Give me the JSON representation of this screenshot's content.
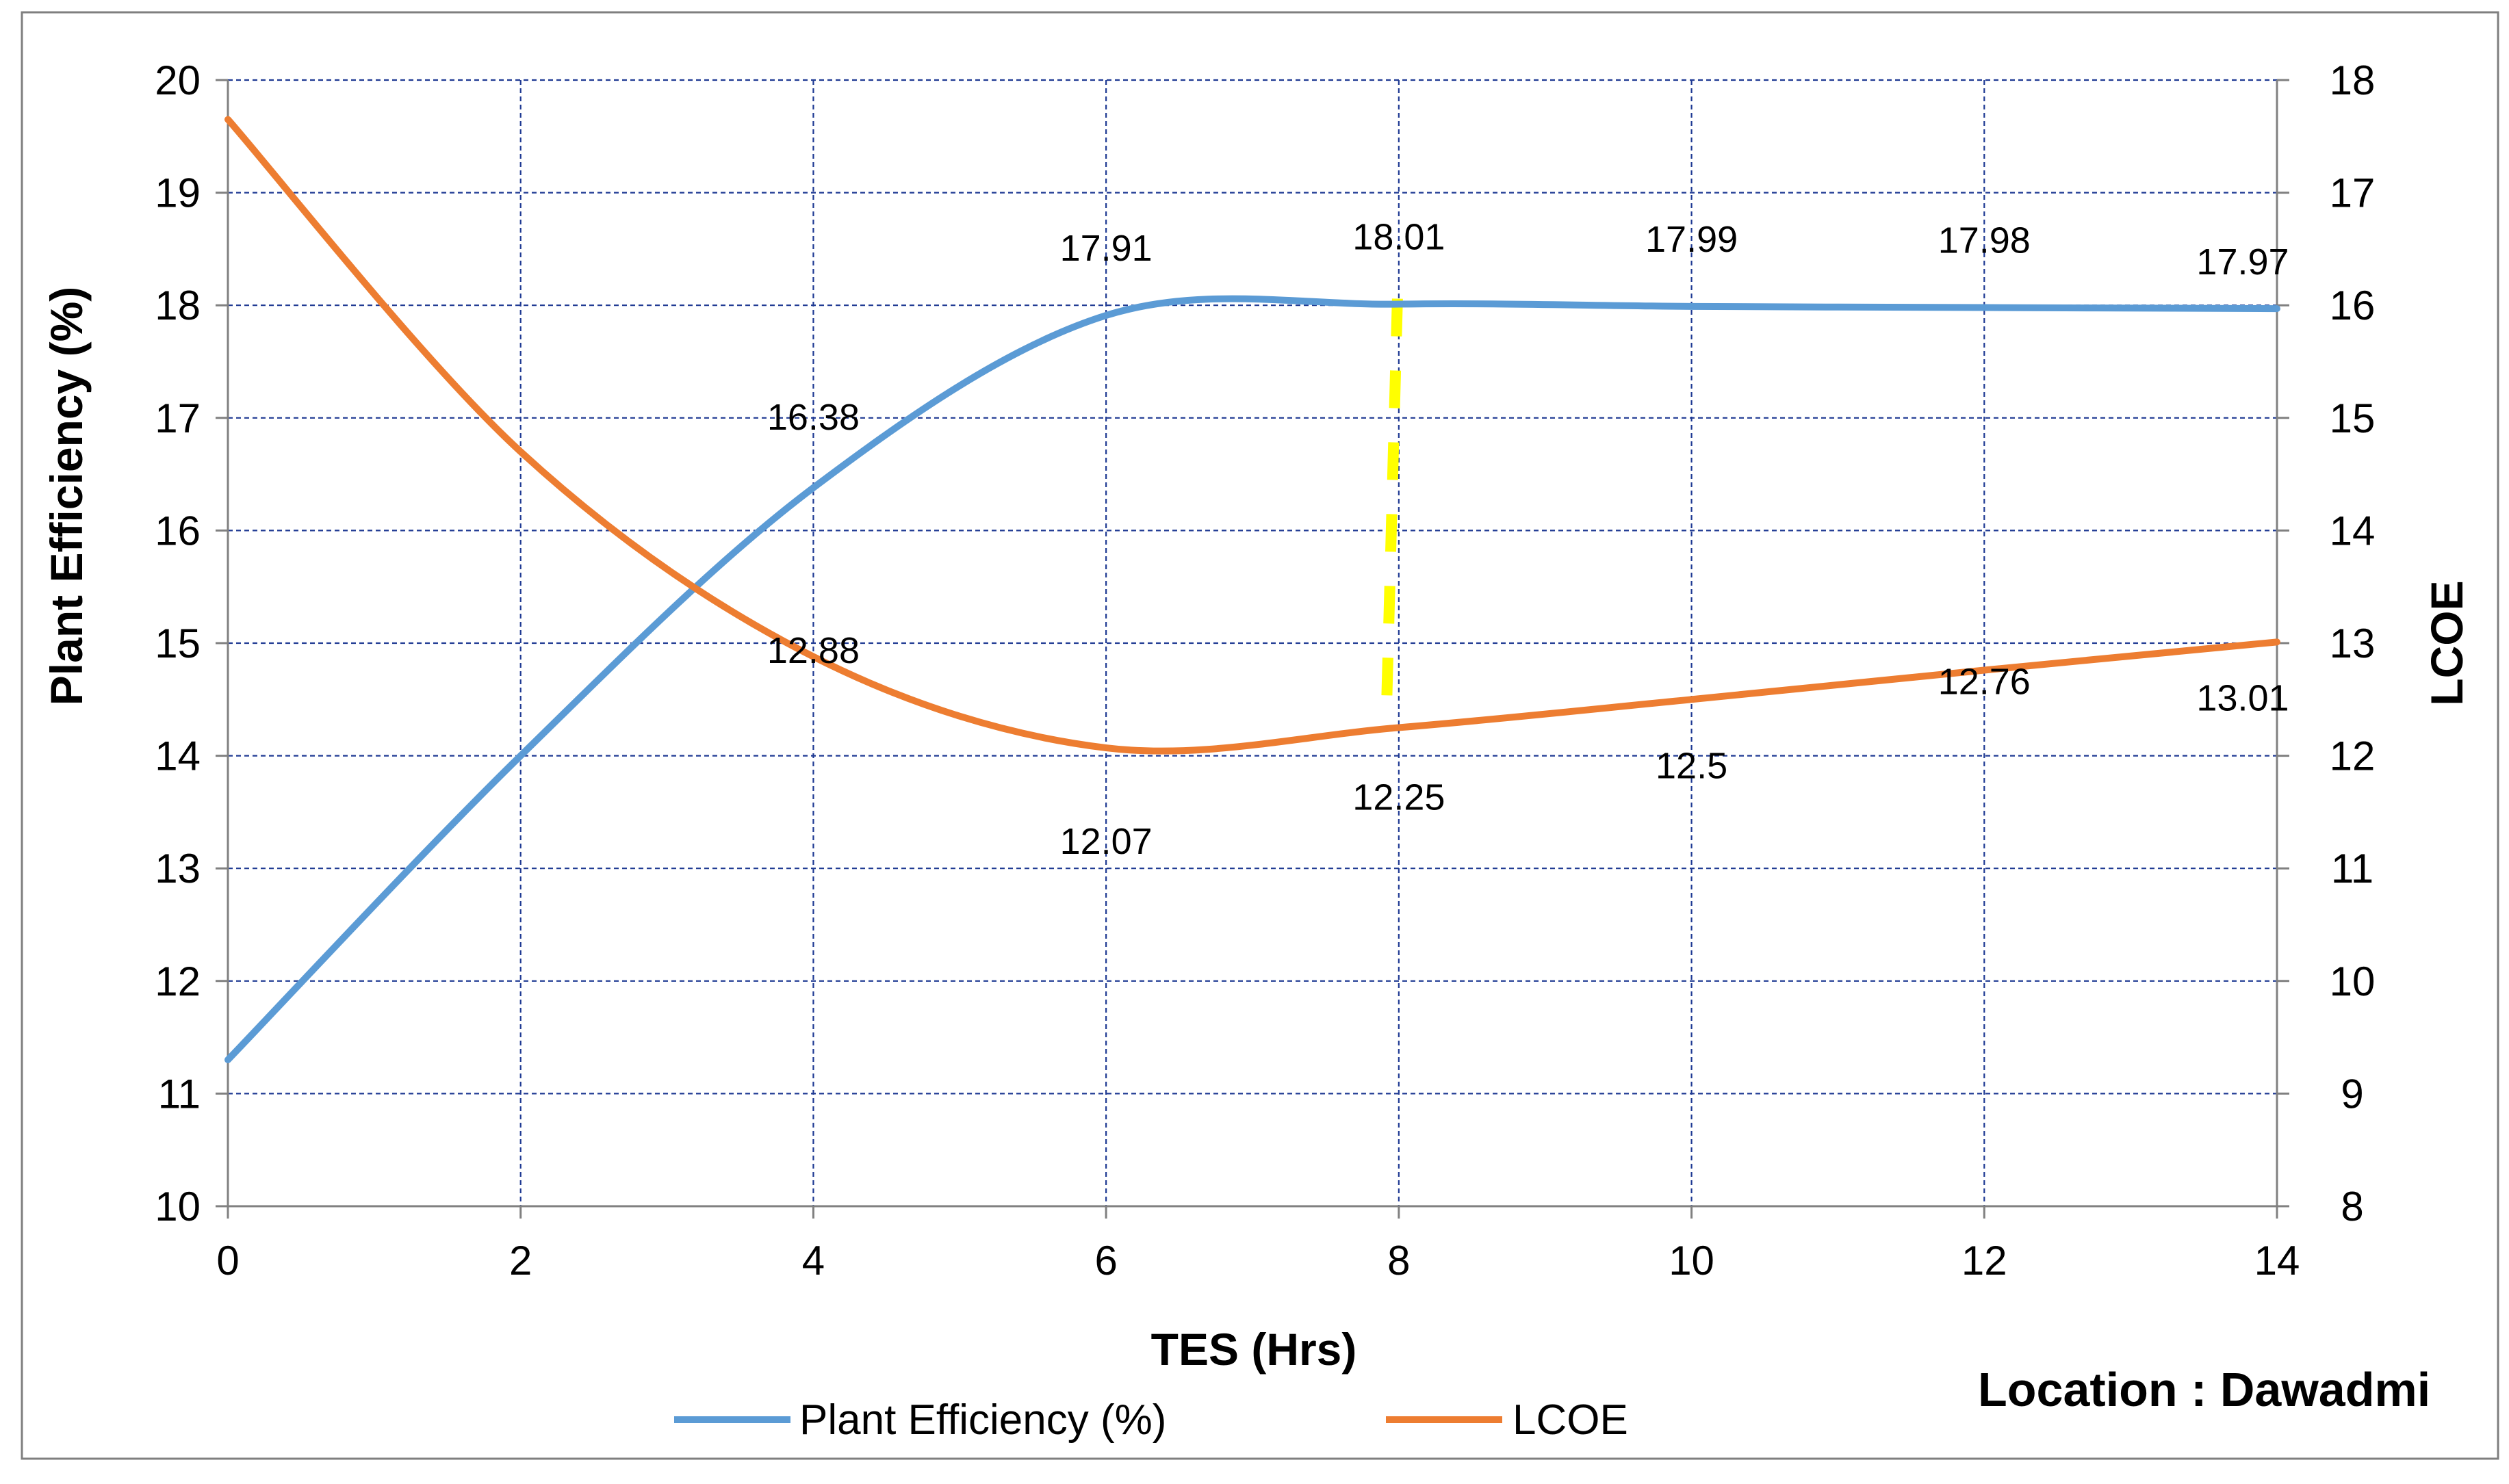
{
  "chart_data": {
    "type": "line",
    "title": "",
    "xlabel": "TES (Hrs)",
    "ylabel": "Plant Efficiency (%)",
    "y2label": "LCOE",
    "xlim": [
      0,
      14
    ],
    "ylim": [
      10,
      20
    ],
    "y2lim": [
      8,
      18
    ],
    "x_ticks": [
      0,
      2,
      4,
      6,
      8,
      10,
      12,
      14
    ],
    "y_ticks": [
      10,
      11,
      12,
      13,
      14,
      15,
      16,
      17,
      18,
      19,
      20
    ],
    "y2_ticks": [
      8,
      9,
      10,
      11,
      12,
      13,
      14,
      15,
      16,
      17,
      18
    ],
    "grid": true,
    "legend_position": "bottom",
    "annotation": "Location : Dawadmi",
    "marker_line": {
      "x": 8,
      "description": "dashed yellow vertical marker"
    },
    "series": [
      {
        "name": "Plant Efficiency (%)",
        "axis": "left",
        "color": "#5B9BD5",
        "x": [
          0,
          2,
          4,
          6,
          8,
          10,
          12,
          14
        ],
        "values": [
          11.3,
          14.0,
          16.38,
          17.91,
          18.01,
          17.99,
          17.98,
          17.97
        ],
        "data_labels": [
          {
            "x": 4,
            "text": "16.38"
          },
          {
            "x": 6,
            "text": "17.91"
          },
          {
            "x": 8,
            "text": "18.01"
          },
          {
            "x": 10,
            "text": "17.99"
          },
          {
            "x": 12,
            "text": "17.98"
          },
          {
            "x": 14,
            "text": "17.97"
          }
        ]
      },
      {
        "name": "LCOE",
        "axis": "right",
        "color": "#ED7D31",
        "x": [
          0,
          2,
          4,
          6,
          8,
          10,
          12,
          14
        ],
        "values": [
          17.65,
          14.7,
          12.88,
          12.07,
          12.25,
          12.5,
          12.76,
          13.01
        ],
        "data_labels": [
          {
            "x": 4,
            "text": "12.88"
          },
          {
            "x": 6,
            "text": "12.07"
          },
          {
            "x": 8,
            "text": "12.25"
          },
          {
            "x": 10,
            "text": "12.5"
          },
          {
            "x": 12,
            "text": "12.76"
          },
          {
            "x": 14,
            "text": "13.01"
          }
        ]
      }
    ]
  },
  "colors": {
    "grid": "#1F3A93",
    "axis": "#808080",
    "marker": "#FFFF00",
    "border": "#7F7F7F"
  }
}
